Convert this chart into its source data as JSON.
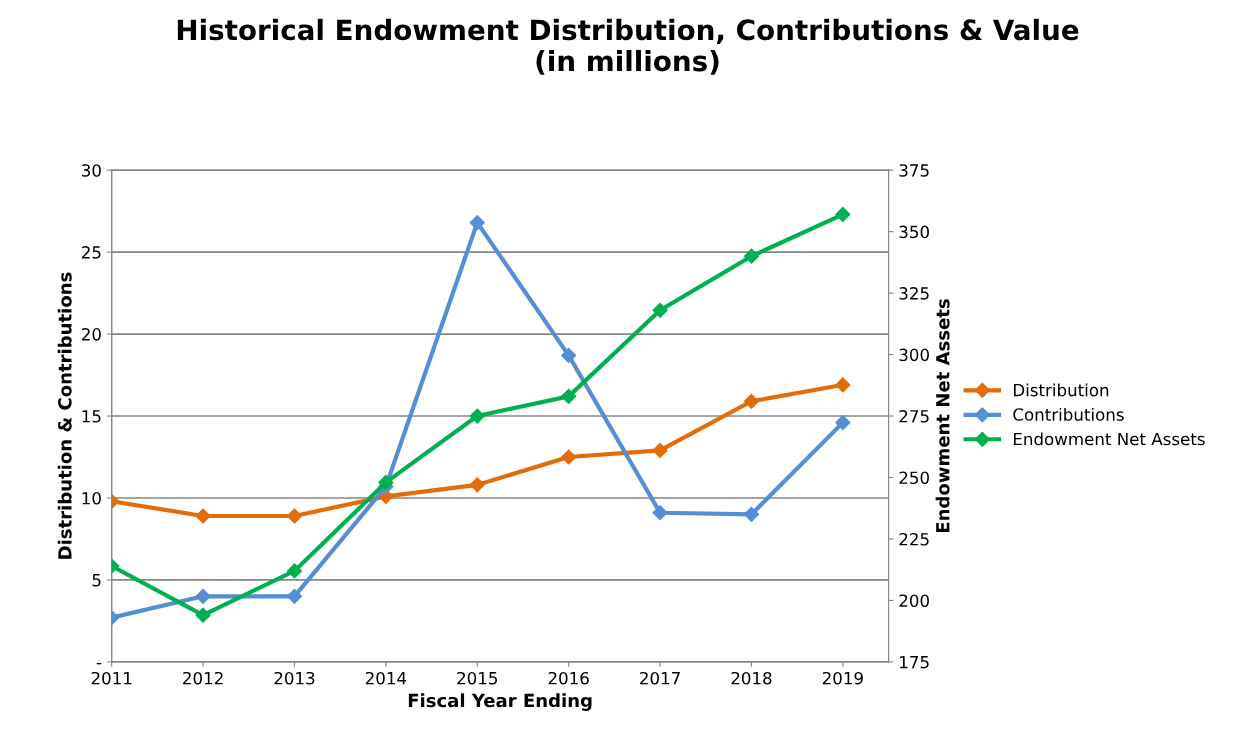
{
  "chart_data": {
    "type": "line",
    "title": "Historical Endowment Distribution, Contributions & Value\n(in millions)",
    "xlabel": "Fiscal Year Ending",
    "ylabel": "Distribution & Contributions",
    "y2label": "Endowment Net Assets",
    "categories": [
      "2011",
      "2012",
      "2013",
      "2014",
      "2015",
      "2016",
      "2017",
      "2018",
      "2019"
    ],
    "series": [
      {
        "name": "Distribution",
        "color": "#e36c09",
        "values": [
          9.8,
          8.9,
          8.9,
          10.1,
          10.8,
          12.5,
          12.9,
          15.9,
          16.9
        ]
      },
      {
        "name": "Contributions",
        "color": "#558ed5",
        "values": [
          2.7,
          4.0,
          4.0,
          10.7,
          26.8,
          18.7,
          9.1,
          9.0,
          14.6
        ]
      },
      {
        "name": "Endowment Net Assets",
        "color": "#00b050",
        "axis": "y2",
        "values": [
          214,
          194,
          212,
          248,
          275,
          283,
          318,
          340,
          357
        ]
      }
    ],
    "ylim": [
      0,
      30
    ],
    "yticks": [
      {
        "value": 0,
        "label": "-"
      },
      5,
      10,
      15,
      20,
      25,
      30
    ],
    "y2lim": [
      175,
      375
    ],
    "y2ticks": [
      175,
      200,
      225,
      250,
      275,
      300,
      325,
      350,
      375
    ],
    "grid": "y",
    "legend": "right",
    "marker": "diamond",
    "line_style": "solid"
  }
}
